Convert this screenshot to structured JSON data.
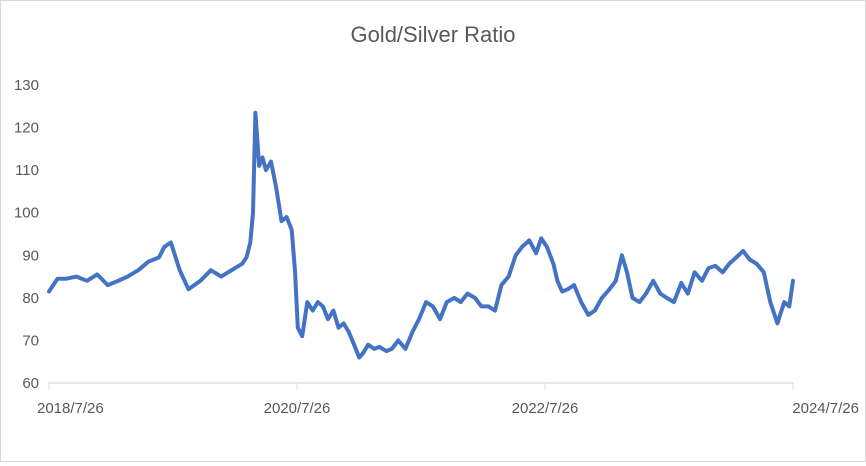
{
  "chart_data": {
    "type": "line",
    "title": "Gold/Silver Ratio",
    "xlabel": "",
    "ylabel": "",
    "ylim": [
      60,
      130
    ],
    "yticks": [
      60,
      70,
      80,
      90,
      100,
      110,
      120,
      130
    ],
    "xlim": [
      "2018-07-26",
      "2024-07-26"
    ],
    "xtick_labels": [
      "2018/7/26",
      "2020/7/26",
      "2022/7/26",
      "2024/7/26"
    ],
    "grid": false,
    "legend": "none",
    "series_color": "#4472C4",
    "axis_color": "#d9d9d9",
    "text_color": "#595959",
    "series": [
      {
        "x": [
          "2018-07-26",
          "2018-08-20",
          "2018-09-15",
          "2018-10-15",
          "2018-11-15",
          "2018-12-15",
          "2019-01-15",
          "2019-02-15",
          "2019-03-15",
          "2019-04-15",
          "2019-05-15",
          "2019-06-15",
          "2019-07-01",
          "2019-07-20",
          "2019-08-15",
          "2019-09-10",
          "2019-10-15",
          "2019-11-15",
          "2019-12-15",
          "2020-01-15",
          "2020-02-15",
          "2020-02-28",
          "2020-03-10",
          "2020-03-18",
          "2020-03-25",
          "2020-04-05",
          "2020-04-15",
          "2020-04-25",
          "2020-05-10",
          "2020-05-25",
          "2020-06-10",
          "2020-06-25",
          "2020-07-10",
          "2020-07-20",
          "2020-07-28",
          "2020-08-10",
          "2020-08-25",
          "2020-09-10",
          "2020-09-25",
          "2020-10-10",
          "2020-10-25",
          "2020-11-10",
          "2020-11-25",
          "2020-12-10",
          "2020-12-25",
          "2021-01-10",
          "2021-01-25",
          "2021-02-05",
          "2021-02-20",
          "2021-03-10",
          "2021-03-25",
          "2021-04-15",
          "2021-05-01",
          "2021-05-20",
          "2021-06-10",
          "2021-07-01",
          "2021-07-20",
          "2021-08-10",
          "2021-08-30",
          "2021-09-20",
          "2021-10-10",
          "2021-11-01",
          "2021-11-20",
          "2021-12-10",
          "2022-01-01",
          "2022-01-20",
          "2022-02-10",
          "2022-03-01",
          "2022-03-20",
          "2022-04-10",
          "2022-05-01",
          "2022-05-20",
          "2022-06-10",
          "2022-06-30",
          "2022-07-15",
          "2022-08-01",
          "2022-08-20",
          "2022-09-01",
          "2022-09-15",
          "2022-10-01",
          "2022-10-20",
          "2022-11-10",
          "2022-12-01",
          "2022-12-20",
          "2023-01-10",
          "2023-02-01",
          "2023-02-20",
          "2023-03-10",
          "2023-03-25",
          "2023-04-10",
          "2023-05-01",
          "2023-05-20",
          "2023-06-10",
          "2023-07-01",
          "2023-07-20",
          "2023-08-10",
          "2023-09-01",
          "2023-09-20",
          "2023-10-10",
          "2023-11-01",
          "2023-11-20",
          "2023-12-10",
          "2024-01-01",
          "2024-01-20",
          "2024-02-10",
          "2024-03-01",
          "2024-03-20",
          "2024-04-10",
          "2024-05-01",
          "2024-05-20",
          "2024-06-10",
          "2024-06-30",
          "2024-07-15",
          "2024-07-26"
        ],
        "values": [
          81.5,
          84.5,
          84.5,
          85.0,
          84.0,
          85.5,
          83.0,
          84.0,
          85.0,
          86.5,
          88.5,
          89.5,
          92.0,
          93.0,
          86.5,
          82.0,
          84.0,
          86.5,
          85.0,
          86.5,
          88.0,
          89.5,
          93.0,
          100.0,
          123.5,
          111.0,
          113.0,
          110.0,
          112.0,
          106.0,
          98.0,
          99.0,
          96.0,
          86.0,
          73.0,
          71.0,
          79.0,
          77.0,
          79.0,
          78.0,
          75.0,
          77.0,
          73.0,
          74.0,
          72.0,
          69.0,
          66.0,
          67.0,
          69.0,
          68.0,
          68.5,
          67.5,
          68.0,
          70.0,
          68.0,
          72.0,
          75.0,
          79.0,
          78.0,
          75.0,
          79.0,
          80.0,
          79.0,
          81.0,
          80.0,
          78.0,
          78.0,
          77.0,
          83.0,
          85.0,
          90.0,
          92.0,
          93.5,
          90.5,
          94.0,
          92.0,
          88.0,
          84.0,
          81.5,
          82.0,
          83.0,
          79.0,
          76.0,
          77.0,
          80.0,
          82.0,
          84.0,
          90.0,
          86.0,
          80.0,
          79.0,
          81.0,
          84.0,
          81.0,
          80.0,
          79.0,
          83.5,
          81.0,
          86.0,
          84.0,
          87.0,
          87.5,
          86.0,
          88.0,
          89.5,
          91.0,
          89.0,
          88.0,
          86.0,
          79.0,
          74.0,
          79.0,
          78.0,
          84.0
        ]
      }
    ]
  }
}
